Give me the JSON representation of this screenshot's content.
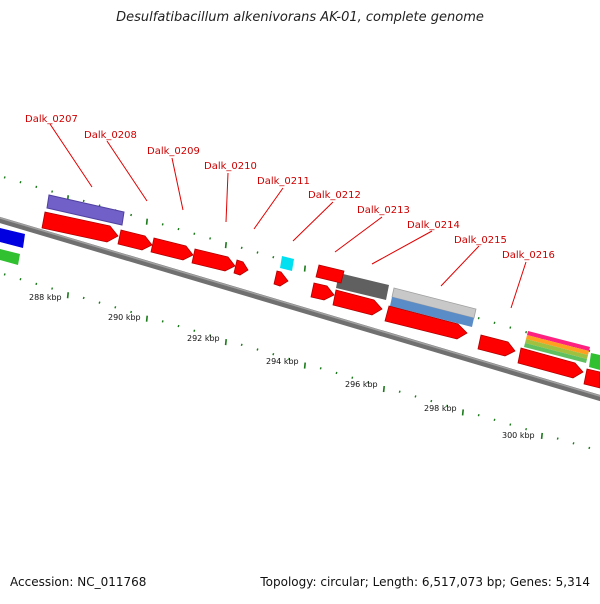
{
  "title": "Desulfatibacillum alkenivorans AK-01, complete genome",
  "footer": {
    "accession": "Accession: NC_011768",
    "summary": "Topology: circular; Length: 6,517,073 bp; Genes: 5,314"
  },
  "gene_labels": [
    "Dalk_0207",
    "Dalk_0208",
    "Dalk_0209",
    "Dalk_0210",
    "Dalk_0211",
    "Dalk_0212",
    "Dalk_0213",
    "Dalk_0214",
    "Dalk_0215",
    "Dalk_0216"
  ],
  "scale_labels": [
    "288 kbp",
    "290 kbp",
    "292 kbp",
    "294 kbp",
    "296 kbp",
    "298 kbp",
    "300 kbp"
  ],
  "colors": {
    "gene": "#ff0000",
    "label": "#cc0000",
    "tick": "#1a7a1a",
    "backbone": "#808080",
    "purple": "#7060c8",
    "cyan": "#00e0f0",
    "blue": "#0000e0",
    "green": "#30c030",
    "dark_gray": "#606060",
    "light_gray": "#c8c8c8",
    "steel_blue": "#5a8cc8"
  }
}
